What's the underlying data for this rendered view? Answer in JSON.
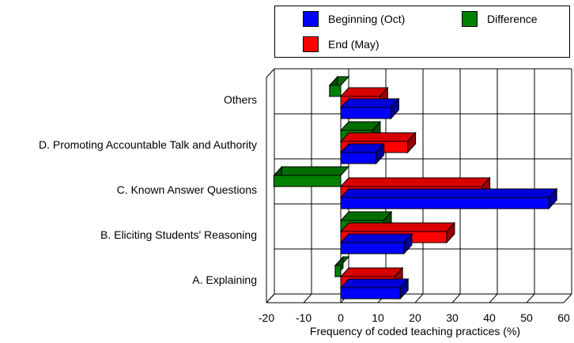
{
  "chart_data": {
    "type": "bar",
    "orientation": "horizontal",
    "three_d": true,
    "title": "",
    "xlabel": "Frequency of coded teaching practices (%)",
    "ylabel": "",
    "xlim": [
      -20,
      60
    ],
    "x_ticks": [
      "-20",
      "-10",
      "0",
      "10",
      "20",
      "30",
      "40",
      "50",
      "60"
    ],
    "grid": true,
    "legend_position": "top-right",
    "categories": [
      "Others",
      "D. Promoting Accountable Talk and Authority",
      "C. Known Answer Questions",
      "B. Eliciting Students' Reasoning",
      "A. Explaining"
    ],
    "series": [
      {
        "name": "Beginning (Oct)",
        "color": "#0000ff",
        "values": [
          13.5,
          9.5,
          56,
          17,
          16
        ]
      },
      {
        "name": "End (May)",
        "color": "#ff0000",
        "values": [
          10.5,
          18,
          38,
          28.5,
          14.5
        ]
      },
      {
        "name": "Difference",
        "color": "#008000",
        "values": [
          -3,
          8.5,
          -18,
          11.5,
          -1.5
        ]
      }
    ]
  }
}
